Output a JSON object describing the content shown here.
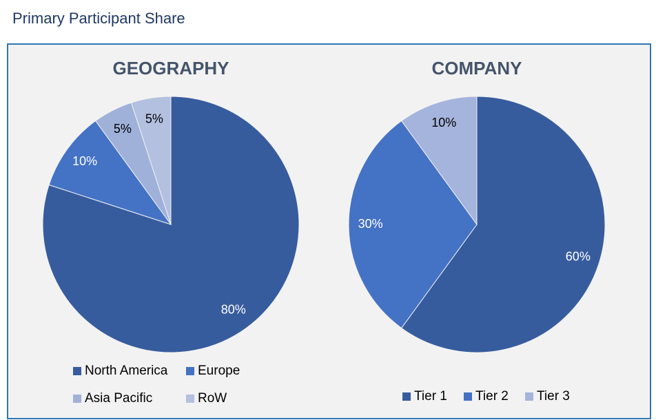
{
  "header": {
    "title": "Primary Participant Share"
  },
  "chart_data": [
    {
      "type": "pie",
      "title": "GEOGRAPHY",
      "categories": [
        "North America",
        "Europe",
        "Asia Pacific",
        "RoW"
      ],
      "values": [
        80,
        10,
        5,
        5
      ],
      "value_labels": [
        "80%",
        "10%",
        "5%",
        "5%"
      ],
      "colors": [
        "#375c9e",
        "#4472c4",
        "#9fb1d9",
        "#b4c0e0"
      ],
      "legend": "bottom"
    },
    {
      "type": "pie",
      "title": "COMPANY",
      "categories": [
        "Tier 1",
        "Tier 2",
        "Tier 3"
      ],
      "values": [
        60,
        30,
        10
      ],
      "value_labels": [
        "60%",
        "30%",
        "10%"
      ],
      "colors": [
        "#375c9e",
        "#4472c4",
        "#a5b4dc"
      ],
      "legend": "bottom"
    }
  ]
}
